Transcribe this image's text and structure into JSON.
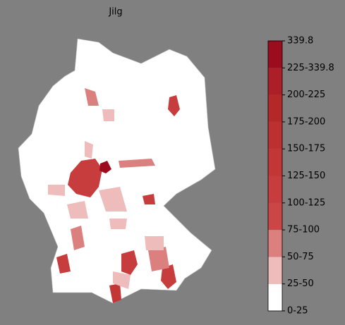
{
  "title": "Jilg",
  "colorbar": {
    "labels": [
      "0-25",
      "25-50",
      "50-75",
      "75-100",
      "100-125",
      "125-150",
      "150-175",
      "175-200",
      "200-225",
      "225-339.8",
      "339.8"
    ],
    "colors": [
      "#ffffff",
      "#efbcbc",
      "#db7f7f",
      "#cb4646",
      "#c73d3d",
      "#c23636",
      "#bc3030",
      "#b52828",
      "#ad1f28",
      "#9c0c1f"
    ]
  }
}
